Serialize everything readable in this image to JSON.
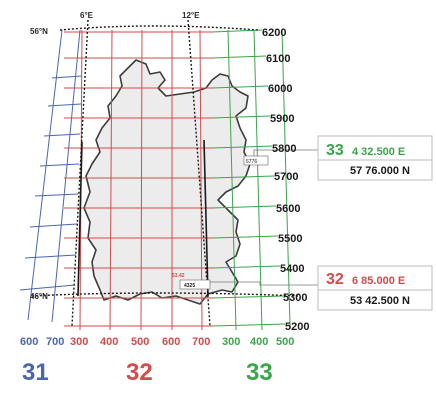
{
  "colors": {
    "zone31": "#4a66b0",
    "zone32": "#d64a4a",
    "zone33": "#3aa64a",
    "country_fill": "#ececec",
    "border": "#3c3c3c",
    "text_dark": "#1a1a1a"
  },
  "graticule": {
    "top_lat": "56°N",
    "bottom_lat": "46°N",
    "lon_6": "6°E",
    "lon_12": "12°E"
  },
  "northing_labels": [
    "6200",
    "6100",
    "6000",
    "5900",
    "5800",
    "5700",
    "5600",
    "5500",
    "5400",
    "5300",
    "5200"
  ],
  "zone31_easting_labels": [
    "600",
    "700"
  ],
  "zone32_easting_labels": [
    "300",
    "400",
    "500",
    "600",
    "700"
  ],
  "zone33_easting_labels": [
    "300",
    "400",
    "500"
  ],
  "zone_labels": {
    "z31": "31",
    "z32": "32",
    "z33": "33"
  },
  "callout_north": {
    "zone": "33",
    "easting": "4 32.500 E",
    "northing": "57 76.000 N"
  },
  "callout_south": {
    "zone": "32",
    "easting": "6 85.000 E",
    "northing": "53 42.500 N"
  },
  "map_small_labels": {
    "north_marker": "5776",
    "south_marker_a": "53.42",
    "south_marker_b": "4325"
  }
}
